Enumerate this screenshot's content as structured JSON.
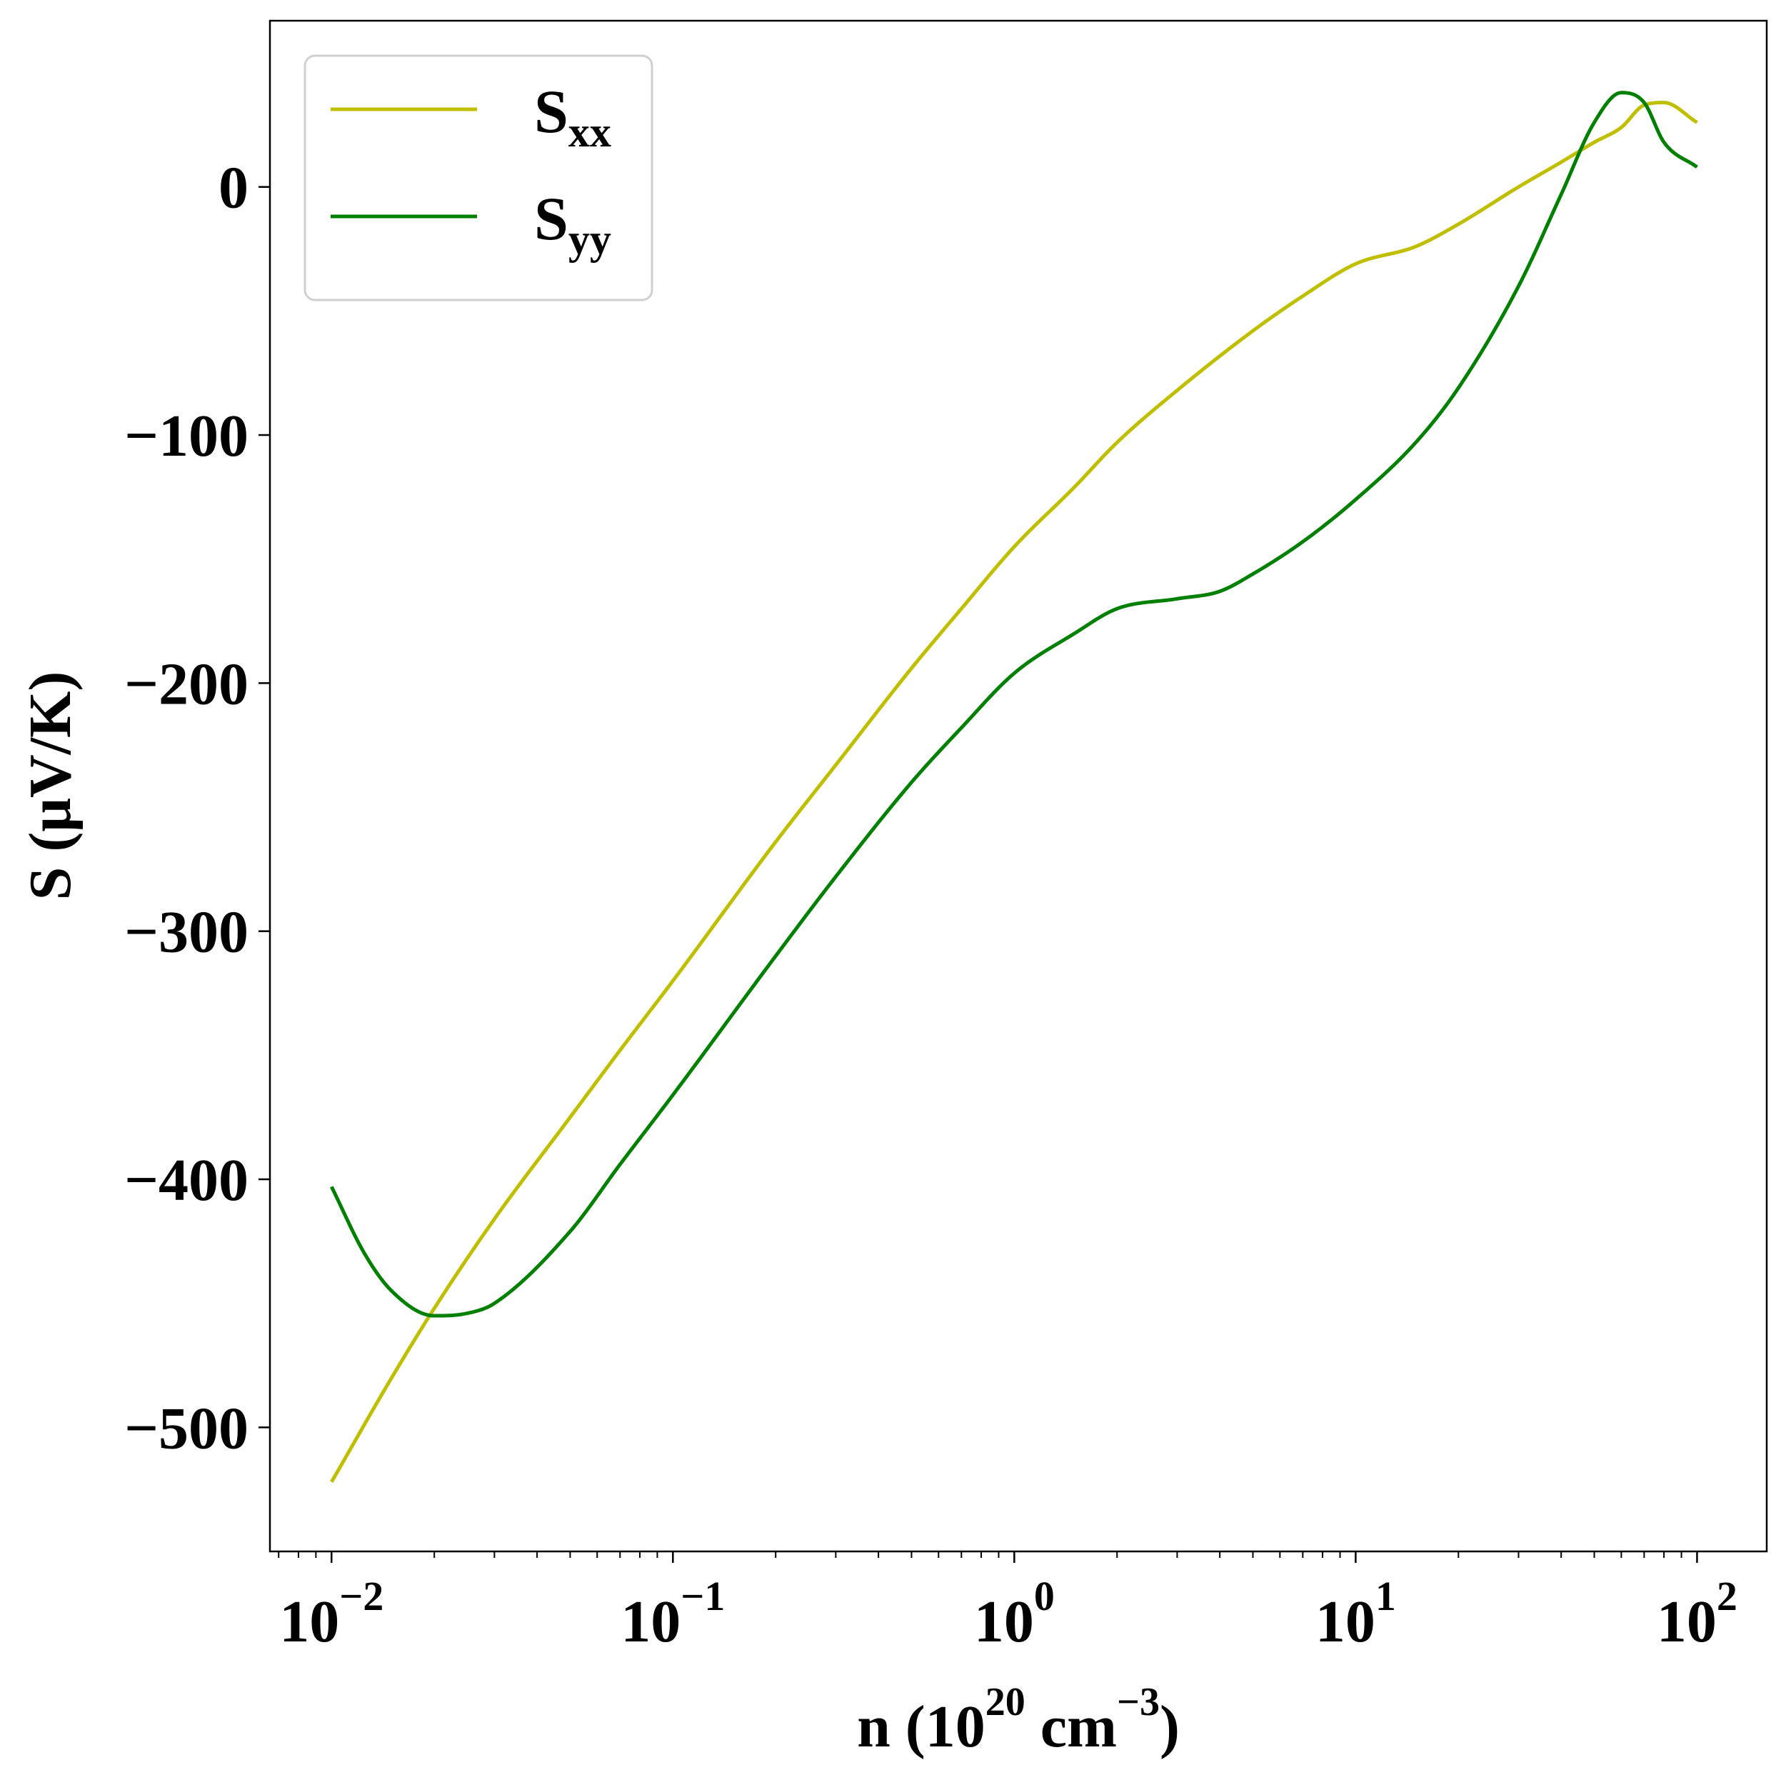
{
  "chart_data": {
    "type": "line",
    "xscale": "log",
    "xlabel": {
      "base": "n (10",
      "sup1": "20",
      "mid": " cm",
      "sup2": "−3",
      "end": ")"
    },
    "ylabel": "S (μV/K)",
    "xlim": [
      0.0066,
      160
    ],
    "ylim": [
      -550,
      67
    ],
    "x_ticks": [
      {
        "value": 0.01,
        "base": "10",
        "exp": "−2"
      },
      {
        "value": 0.1,
        "base": "10",
        "exp": "−1"
      },
      {
        "value": 1,
        "base": "10",
        "exp": "0"
      },
      {
        "value": 10,
        "base": "10",
        "exp": "1"
      },
      {
        "value": 100,
        "base": "10",
        "exp": "2"
      }
    ],
    "y_ticks": [
      {
        "value": 0,
        "label": "0"
      },
      {
        "value": -100,
        "label": "−100"
      },
      {
        "value": -200,
        "label": "−200"
      },
      {
        "value": -300,
        "label": "−300"
      },
      {
        "value": -400,
        "label": "−400"
      },
      {
        "value": -500,
        "label": "−500"
      }
    ],
    "grid": false,
    "legend_position": "top-left",
    "series": [
      {
        "name": "S",
        "subscript": "xx",
        "color": "#bfbf00",
        "points": [
          [
            0.01,
            -522
          ],
          [
            0.015,
            -480
          ],
          [
            0.02,
            -452
          ],
          [
            0.03,
            -416
          ],
          [
            0.05,
            -375
          ],
          [
            0.07,
            -348
          ],
          [
            0.1,
            -320
          ],
          [
            0.2,
            -264
          ],
          [
            0.3,
            -233
          ],
          [
            0.5,
            -194
          ],
          [
            0.7,
            -170
          ],
          [
            1,
            -145
          ],
          [
            1.5,
            -121
          ],
          [
            2,
            -103
          ],
          [
            3,
            -82
          ],
          [
            5,
            -58
          ],
          [
            7,
            -44
          ],
          [
            10,
            -31
          ],
          [
            15,
            -24
          ],
          [
            20,
            -15
          ],
          [
            30,
            0
          ],
          [
            40,
            10
          ],
          [
            50,
            18
          ],
          [
            60,
            24
          ],
          [
            70,
            33
          ],
          [
            80,
            34
          ],
          [
            100,
            26
          ]
        ]
      },
      {
        "name": "S",
        "subscript": "yy",
        "color": "#008000",
        "points": [
          [
            0.01,
            -403
          ],
          [
            0.0125,
            -430
          ],
          [
            0.015,
            -445
          ],
          [
            0.02,
            -455
          ],
          [
            0.025,
            -454
          ],
          [
            0.03,
            -450
          ],
          [
            0.05,
            -421
          ],
          [
            0.07,
            -394
          ],
          [
            0.1,
            -366
          ],
          [
            0.2,
            -310
          ],
          [
            0.3,
            -278
          ],
          [
            0.5,
            -240
          ],
          [
            0.7,
            -218
          ],
          [
            1,
            -196
          ],
          [
            1.5,
            -180
          ],
          [
            2,
            -170
          ],
          [
            3,
            -166
          ],
          [
            4,
            -163
          ],
          [
            5,
            -156
          ],
          [
            7,
            -143
          ],
          [
            10,
            -126
          ],
          [
            15,
            -103
          ],
          [
            20,
            -81
          ],
          [
            30,
            -40
          ],
          [
            40,
            -3
          ],
          [
            50,
            26
          ],
          [
            60,
            38
          ],
          [
            70,
            34
          ],
          [
            80,
            18
          ],
          [
            100,
            8
          ]
        ]
      }
    ]
  }
}
